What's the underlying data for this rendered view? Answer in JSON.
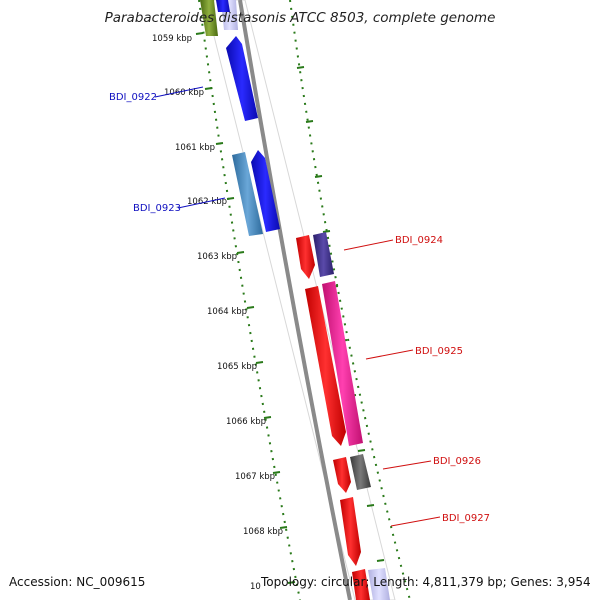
{
  "title": "Parabacteroides distasonis ATCC 8503, complete genome",
  "accession": "Accession: NC_009615",
  "topology": "Topology: circular; Length: 4,811,379 bp; Genes: 3,954",
  "ticks": [
    {
      "label": "1059 kbp"
    },
    {
      "label": "1060 kbp"
    },
    {
      "label": "1061 kbp"
    },
    {
      "label": "1062 kbp"
    },
    {
      "label": "1063 kbp"
    },
    {
      "label": "1064 kbp"
    },
    {
      "label": "1065 kbp"
    },
    {
      "label": "1066 kbp"
    },
    {
      "label": "1067 kbp"
    },
    {
      "label": "1068 kbp"
    },
    {
      "label": "10"
    }
  ],
  "genes": [
    {
      "label": "BDI_0922",
      "color": "#1010c0"
    },
    {
      "label": "BDI_0923",
      "color": "#1010c0"
    },
    {
      "label": "BDI_0924",
      "color": "#d01010"
    },
    {
      "label": "BDI_0925",
      "color": "#d01010"
    },
    {
      "label": "BDI_0926",
      "color": "#d01010"
    },
    {
      "label": "BDI_0927",
      "color": "#d01010"
    }
  ],
  "feature_colors": {
    "cds_blue": "#1010e0",
    "cds_steelblue": "#4a8cc4",
    "cds_red": "#ee1111",
    "cds_magenta": "#ee2299",
    "cds_navy": "#3b2f8a",
    "cds_gray": "#555555",
    "backbone": "#888888",
    "tick_green": "#2a7a1a"
  }
}
